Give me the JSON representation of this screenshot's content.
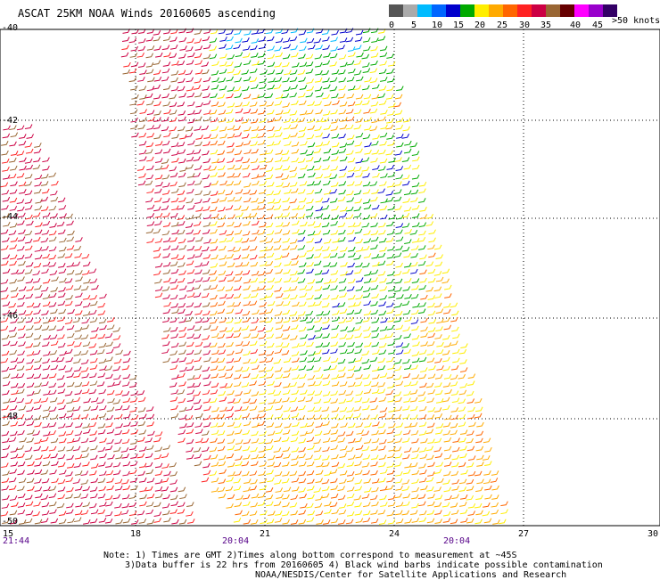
{
  "title": "ASCAT 25KM NOAA Winds 20160605 ascending",
  "legend": {
    "labels": [
      "0",
      "5",
      "10",
      "15",
      "20",
      "25",
      "30",
      "35",
      "40",
      "45",
      ">50 knots"
    ],
    "colors": [
      "#555555",
      "#aaaaaa",
      "#00bbff",
      "#0066ff",
      "#0000cc",
      "#00aa00",
      "#ffee00",
      "#ffaa00",
      "#ff6600",
      "#ff2222",
      "#cc0044",
      "#996633",
      "#660000",
      "#ff00ff",
      "#9900cc",
      "#330066"
    ]
  },
  "lat_labels": [
    "-40",
    "-42",
    "-44",
    "-46",
    "-48",
    "-50"
  ],
  "lon_labels": [
    "15",
    "18",
    "21",
    "24",
    "27",
    "30"
  ],
  "time_labels": [
    "21:44",
    "20:04",
    "20:04"
  ],
  "notes": {
    "line1": "Note: 1) Times are GMT 2)Times along bottom correspond to measurement at ~45S",
    "line2": "3)Data buffer is 22 hrs from 20160605 4) Black wind barbs indicate possible contamination",
    "line3": "NOAA/NESDIS/Center for Satellite Applications and Research"
  }
}
